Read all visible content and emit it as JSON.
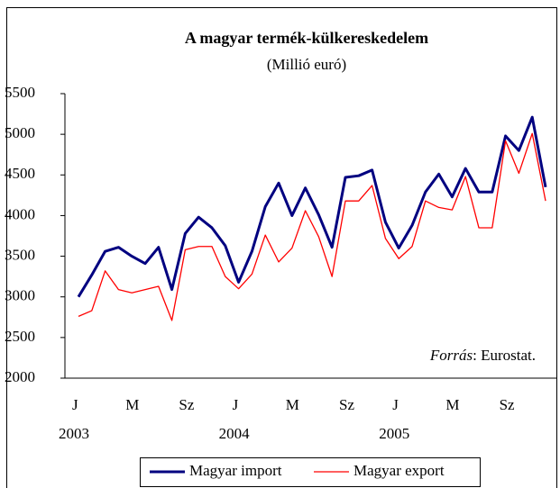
{
  "chart_data": {
    "type": "line",
    "title": "A magyar termék-külkereskedelem",
    "subtitle": "(Millió euró)",
    "categories": [
      "J",
      null,
      null,
      null,
      "M",
      null,
      null,
      null,
      "Sz",
      null,
      null,
      null,
      "J",
      null,
      null,
      null,
      "M",
      null,
      null,
      null,
      "Sz",
      null,
      null,
      null,
      "J",
      null,
      null,
      null,
      "M",
      null,
      null,
      null,
      "Sz",
      null,
      null,
      null
    ],
    "years": [
      "2003",
      "2004",
      "2005"
    ],
    "series": [
      {
        "name": "Magyar import",
        "color": "#000080",
        "width": 3,
        "values": [
          3000,
          3270,
          3560,
          3610,
          3500,
          3410,
          3610,
          3090,
          3780,
          3980,
          3850,
          3630,
          3180,
          3560,
          4110,
          4400,
          4000,
          4340,
          4010,
          3610,
          4470,
          4490,
          4560,
          3920,
          3600,
          3880,
          4290,
          4510,
          4230,
          4580,
          4290,
          4290,
          4980,
          4800,
          5210,
          4350
        ]
      },
      {
        "name": "Magyar export",
        "color": "#ff0000",
        "width": 1.3,
        "values": [
          2760,
          2830,
          3320,
          3090,
          3050,
          3090,
          3130,
          2710,
          3580,
          3620,
          3620,
          3250,
          3100,
          3280,
          3760,
          3430,
          3600,
          4060,
          3740,
          3250,
          4180,
          4180,
          4370,
          3720,
          3470,
          3620,
          4180,
          4100,
          4070,
          4480,
          3850,
          3850,
          4920,
          4520,
          5010,
          4180
        ]
      }
    ],
    "ylim": [
      2000,
      5500
    ],
    "yticks": [
      2000,
      2500,
      3000,
      3500,
      4000,
      4500,
      5000,
      5500
    ],
    "grid": false,
    "annotation": {
      "italic": "Forrás",
      "text": ": Eurostat."
    },
    "legend": "bottom"
  }
}
